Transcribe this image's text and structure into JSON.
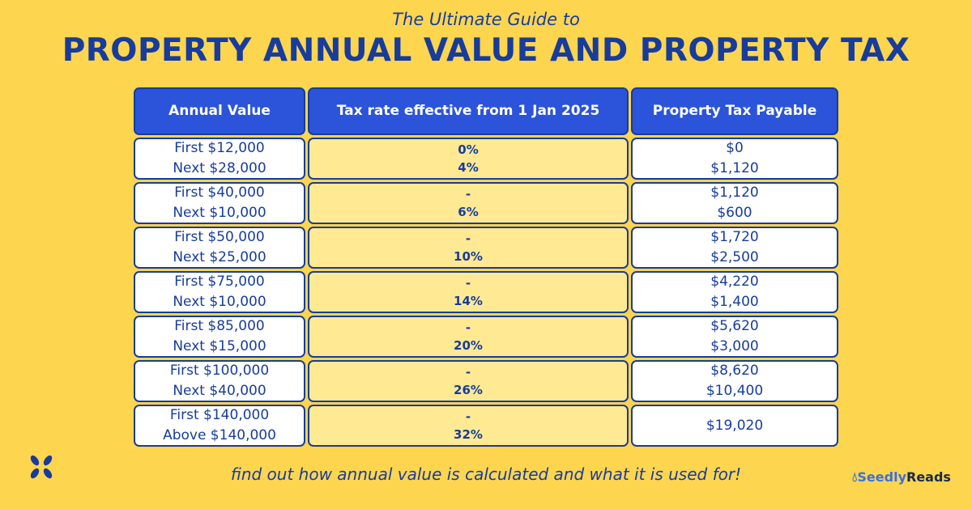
{
  "header": {
    "subtitle": "The Ultimate Guide to",
    "title": "PROPERTY ANNUAL VALUE AND PROPERTY TAX"
  },
  "table": {
    "columns": [
      "Annual Value",
      "Tax rate effective from 1 Jan 2025",
      "Property Tax Payable"
    ],
    "rows": [
      {
        "av": [
          "First $12,000",
          "Next $28,000"
        ],
        "rate": [
          "0%",
          "4%"
        ],
        "tax": [
          "$0",
          "$1,120"
        ]
      },
      {
        "av": [
          "First $40,000",
          "Next $10,000"
        ],
        "rate": [
          "-",
          "6%"
        ],
        "tax": [
          "$1,120",
          "$600"
        ]
      },
      {
        "av": [
          "First $50,000",
          "Next $25,000"
        ],
        "rate": [
          "-",
          "10%"
        ],
        "tax": [
          "$1,720",
          "$2,500"
        ]
      },
      {
        "av": [
          "First $75,000",
          "Next $10,000"
        ],
        "rate": [
          "-",
          "14%"
        ],
        "tax": [
          "$4,220",
          "$1,400"
        ]
      },
      {
        "av": [
          "First $85,000",
          "Next $15,000"
        ],
        "rate": [
          "-",
          "20%"
        ],
        "tax": [
          "$5,620",
          "$3,000"
        ]
      },
      {
        "av": [
          "First $100,000",
          "Next $40,000"
        ],
        "rate": [
          "-",
          "26%"
        ],
        "tax": [
          "$8,620",
          "$10,400"
        ]
      },
      {
        "av": [
          "First $140,000",
          "Above $140,000"
        ],
        "rate": [
          "-",
          "32%"
        ],
        "tax": [
          "$19,020"
        ]
      }
    ]
  },
  "footer": {
    "text": "find out how annual value is calculated and what it is used for!"
  },
  "brand": {
    "part1": "Seedly",
    "part2": "Reads"
  },
  "colors": {
    "background": "#FED54F",
    "header": "#2B54DB",
    "text": "#173C9C",
    "rate_cell": "#FFE993"
  }
}
